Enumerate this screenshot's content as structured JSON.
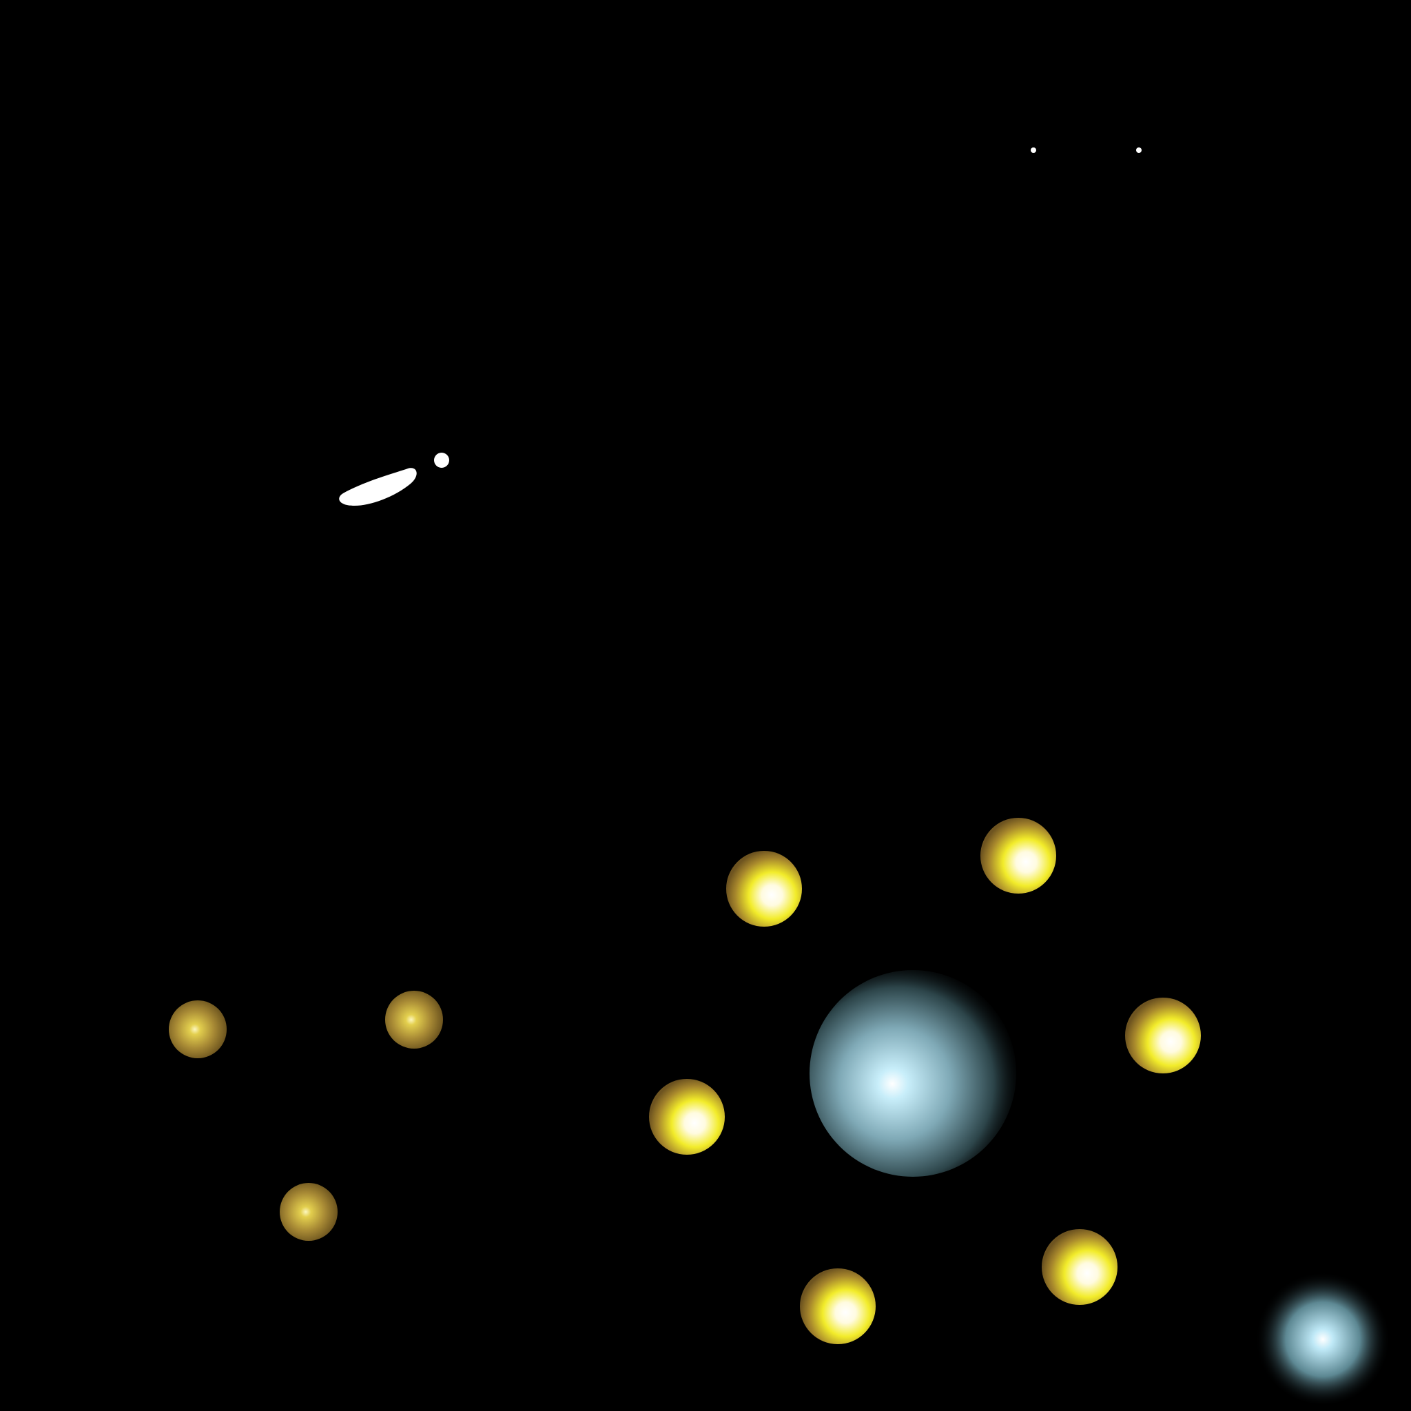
{
  "scene": {
    "background": "#000000",
    "accent_colors": {
      "gold_dim": "#6e5420",
      "gold_mid": "#c9a531",
      "yellow": "#f2ec2a",
      "white_core": "#ffffff",
      "blue_glow": "#a9dcef",
      "blue_dark": "#20343a"
    },
    "elements": [
      "white-comet-streak",
      "white-dot",
      "two-tiny-stars",
      "bright-yellow-orbs",
      "dim-gold-orbs",
      "large-blue-glowing-orb",
      "small-blue-glowing-orb"
    ]
  }
}
